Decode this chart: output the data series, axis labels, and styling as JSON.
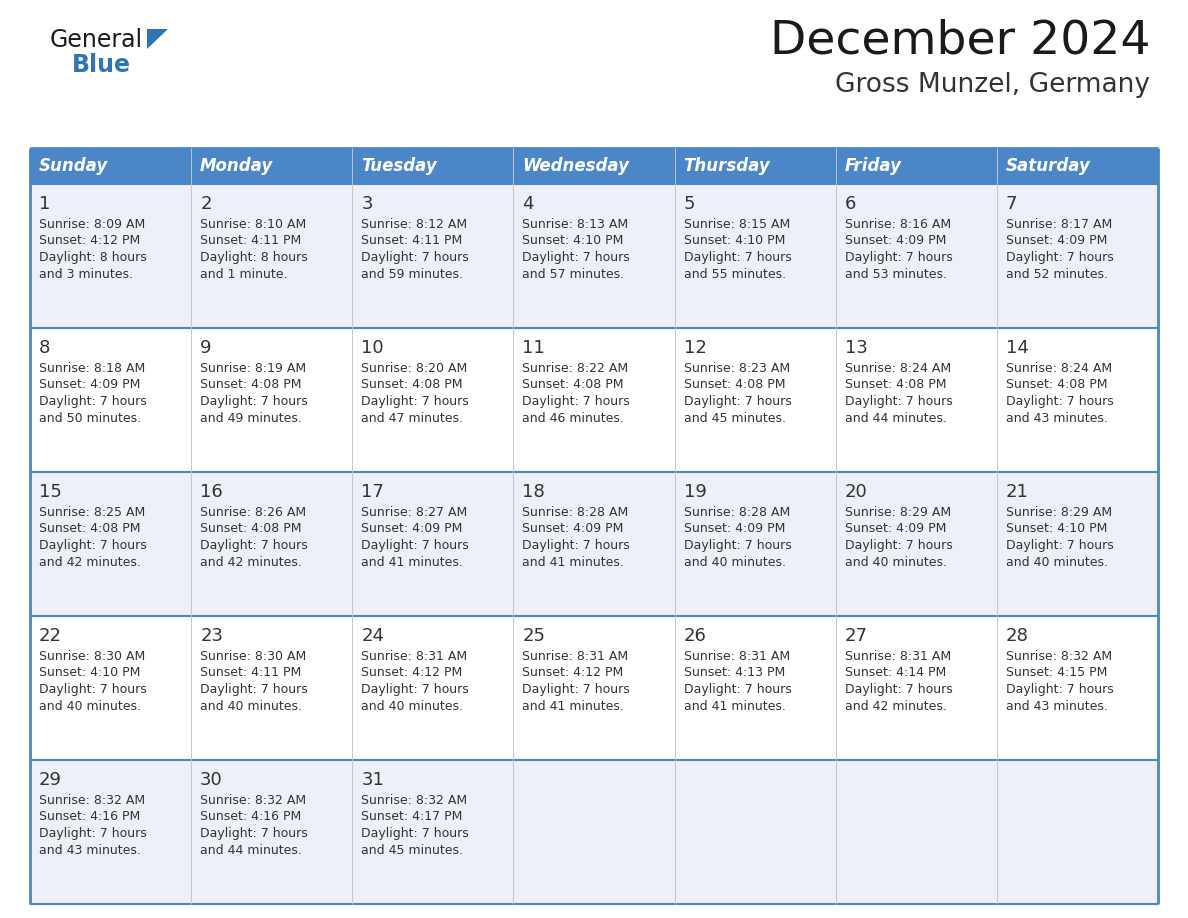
{
  "title": "December 2024",
  "subtitle": "Gross Munzel, Germany",
  "days_of_week": [
    "Sunday",
    "Monday",
    "Tuesday",
    "Wednesday",
    "Thursday",
    "Friday",
    "Saturday"
  ],
  "header_bg": "#4a86c8",
  "header_text": "#ffffff",
  "odd_row_bg": "#edf1f7",
  "even_row_bg": "#ffffff",
  "border_color": "#4a86c8",
  "day_num_color": "#333333",
  "text_color": "#333333",
  "title_color": "#1a1a1a",
  "subtitle_color": "#333333",
  "general_color": "#1a1a1a",
  "blue_color": "#2e75b6",
  "calendar_data": [
    [
      {
        "day": "1",
        "sunrise": "8:09 AM",
        "sunset": "4:12 PM",
        "dl1": "Daylight: 8 hours",
        "dl2": "and 3 minutes."
      },
      {
        "day": "2",
        "sunrise": "8:10 AM",
        "sunset": "4:11 PM",
        "dl1": "Daylight: 8 hours",
        "dl2": "and 1 minute."
      },
      {
        "day": "3",
        "sunrise": "8:12 AM",
        "sunset": "4:11 PM",
        "dl1": "Daylight: 7 hours",
        "dl2": "and 59 minutes."
      },
      {
        "day": "4",
        "sunrise": "8:13 AM",
        "sunset": "4:10 PM",
        "dl1": "Daylight: 7 hours",
        "dl2": "and 57 minutes."
      },
      {
        "day": "5",
        "sunrise": "8:15 AM",
        "sunset": "4:10 PM",
        "dl1": "Daylight: 7 hours",
        "dl2": "and 55 minutes."
      },
      {
        "day": "6",
        "sunrise": "8:16 AM",
        "sunset": "4:09 PM",
        "dl1": "Daylight: 7 hours",
        "dl2": "and 53 minutes."
      },
      {
        "day": "7",
        "sunrise": "8:17 AM",
        "sunset": "4:09 PM",
        "dl1": "Daylight: 7 hours",
        "dl2": "and 52 minutes."
      }
    ],
    [
      {
        "day": "8",
        "sunrise": "8:18 AM",
        "sunset": "4:09 PM",
        "dl1": "Daylight: 7 hours",
        "dl2": "and 50 minutes."
      },
      {
        "day": "9",
        "sunrise": "8:19 AM",
        "sunset": "4:08 PM",
        "dl1": "Daylight: 7 hours",
        "dl2": "and 49 minutes."
      },
      {
        "day": "10",
        "sunrise": "8:20 AM",
        "sunset": "4:08 PM",
        "dl1": "Daylight: 7 hours",
        "dl2": "and 47 minutes."
      },
      {
        "day": "11",
        "sunrise": "8:22 AM",
        "sunset": "4:08 PM",
        "dl1": "Daylight: 7 hours",
        "dl2": "and 46 minutes."
      },
      {
        "day": "12",
        "sunrise": "8:23 AM",
        "sunset": "4:08 PM",
        "dl1": "Daylight: 7 hours",
        "dl2": "and 45 minutes."
      },
      {
        "day": "13",
        "sunrise": "8:24 AM",
        "sunset": "4:08 PM",
        "dl1": "Daylight: 7 hours",
        "dl2": "and 44 minutes."
      },
      {
        "day": "14",
        "sunrise": "8:24 AM",
        "sunset": "4:08 PM",
        "dl1": "Daylight: 7 hours",
        "dl2": "and 43 minutes."
      }
    ],
    [
      {
        "day": "15",
        "sunrise": "8:25 AM",
        "sunset": "4:08 PM",
        "dl1": "Daylight: 7 hours",
        "dl2": "and 42 minutes."
      },
      {
        "day": "16",
        "sunrise": "8:26 AM",
        "sunset": "4:08 PM",
        "dl1": "Daylight: 7 hours",
        "dl2": "and 42 minutes."
      },
      {
        "day": "17",
        "sunrise": "8:27 AM",
        "sunset": "4:09 PM",
        "dl1": "Daylight: 7 hours",
        "dl2": "and 41 minutes."
      },
      {
        "day": "18",
        "sunrise": "8:28 AM",
        "sunset": "4:09 PM",
        "dl1": "Daylight: 7 hours",
        "dl2": "and 41 minutes."
      },
      {
        "day": "19",
        "sunrise": "8:28 AM",
        "sunset": "4:09 PM",
        "dl1": "Daylight: 7 hours",
        "dl2": "and 40 minutes."
      },
      {
        "day": "20",
        "sunrise": "8:29 AM",
        "sunset": "4:09 PM",
        "dl1": "Daylight: 7 hours",
        "dl2": "and 40 minutes."
      },
      {
        "day": "21",
        "sunrise": "8:29 AM",
        "sunset": "4:10 PM",
        "dl1": "Daylight: 7 hours",
        "dl2": "and 40 minutes."
      }
    ],
    [
      {
        "day": "22",
        "sunrise": "8:30 AM",
        "sunset": "4:10 PM",
        "dl1": "Daylight: 7 hours",
        "dl2": "and 40 minutes."
      },
      {
        "day": "23",
        "sunrise": "8:30 AM",
        "sunset": "4:11 PM",
        "dl1": "Daylight: 7 hours",
        "dl2": "and 40 minutes."
      },
      {
        "day": "24",
        "sunrise": "8:31 AM",
        "sunset": "4:12 PM",
        "dl1": "Daylight: 7 hours",
        "dl2": "and 40 minutes."
      },
      {
        "day": "25",
        "sunrise": "8:31 AM",
        "sunset": "4:12 PM",
        "dl1": "Daylight: 7 hours",
        "dl2": "and 41 minutes."
      },
      {
        "day": "26",
        "sunrise": "8:31 AM",
        "sunset": "4:13 PM",
        "dl1": "Daylight: 7 hours",
        "dl2": "and 41 minutes."
      },
      {
        "day": "27",
        "sunrise": "8:31 AM",
        "sunset": "4:14 PM",
        "dl1": "Daylight: 7 hours",
        "dl2": "and 42 minutes."
      },
      {
        "day": "28",
        "sunrise": "8:32 AM",
        "sunset": "4:15 PM",
        "dl1": "Daylight: 7 hours",
        "dl2": "and 43 minutes."
      }
    ],
    [
      {
        "day": "29",
        "sunrise": "8:32 AM",
        "sunset": "4:16 PM",
        "dl1": "Daylight: 7 hours",
        "dl2": "and 43 minutes."
      },
      {
        "day": "30",
        "sunrise": "8:32 AM",
        "sunset": "4:16 PM",
        "dl1": "Daylight: 7 hours",
        "dl2": "and 44 minutes."
      },
      {
        "day": "31",
        "sunrise": "8:32 AM",
        "sunset": "4:17 PM",
        "dl1": "Daylight: 7 hours",
        "dl2": "and 45 minutes."
      },
      null,
      null,
      null,
      null
    ]
  ]
}
